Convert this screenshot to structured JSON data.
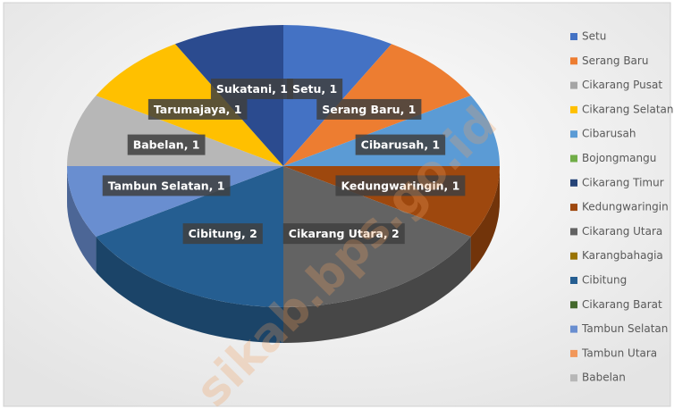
{
  "chart_data": {
    "type": "pie3d",
    "categories": [
      "Setu",
      "Serang Baru",
      "Cikarang Pusat",
      "Cikarang Selatan",
      "Cibarusah",
      "Bojongmangu",
      "Cikarang Timur",
      "Kedungwaringin",
      "Cikarang Utara",
      "Karangbahagia",
      "Cibitung",
      "Cikarang Barat",
      "Tambun Selatan",
      "Tambun Utara",
      "Babelan",
      "Tarumajaya",
      "Sukatani"
    ],
    "values": [
      1,
      1,
      0,
      0,
      1,
      0,
      0,
      1,
      2,
      0,
      2,
      0,
      1,
      0,
      1,
      1,
      1
    ],
    "value_labels": [
      "Setu, 1",
      "Serang Baru, 1",
      null,
      null,
      "Cibarusah, 1",
      null,
      null,
      "Kedungwaringin, 1",
      "Cikarang Utara, 2",
      null,
      "Cibitung, 2",
      null,
      "Tambun Selatan, 1",
      null,
      "Babelan, 1",
      "Tarumajaya, 1",
      "Sukatani, 1"
    ],
    "colors": [
      "#4472c4",
      "#ed7d31",
      "#a5a5a5",
      "#ffc000",
      "#5b9bd5",
      "#70ad47",
      "#264478",
      "#9e480e",
      "#636363",
      "#997300",
      "#255e91",
      "#43682b",
      "#698ed0",
      "#f1975a",
      "#b7b7b7",
      "#ffc000",
      "#2b4b8f"
    ],
    "legend": "right",
    "watermark": "sikab.bps.go.id"
  }
}
